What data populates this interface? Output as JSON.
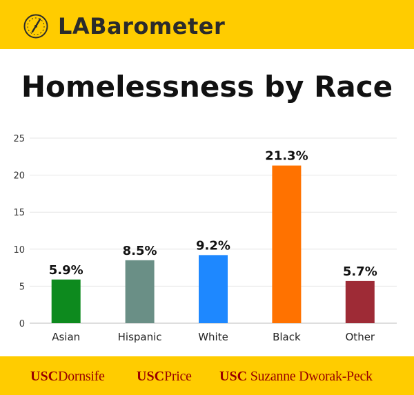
{
  "header": {
    "brand": "LABarometer",
    "icon": "barometer-gauge-icon"
  },
  "colors": {
    "brand_yellow": "#FFCC00",
    "usc_cardinal": "#990000"
  },
  "chart_data": {
    "type": "bar",
    "title": "Homelessness by Race",
    "categories": [
      "Asian",
      "Hispanic",
      "White",
      "Black",
      "Other"
    ],
    "values": [
      5.9,
      8.5,
      9.2,
      21.3,
      5.7
    ],
    "data_labels": [
      "5.9%",
      "8.5%",
      "9.2%",
      "21.3%",
      "5.7%"
    ],
    "colors": [
      "#0D8A1E",
      "#6A8F86",
      "#1E88FF",
      "#FF7200",
      "#9E2B36"
    ],
    "ylim": [
      0,
      25
    ],
    "yticks": [
      0,
      5,
      10,
      15,
      20,
      25
    ],
    "xlabel": "",
    "ylabel": "",
    "grid": true,
    "legend": "none"
  },
  "footer": {
    "orgs": [
      {
        "usc": "USC",
        "name": "Dornsife"
      },
      {
        "usc": "USC",
        "name": "Price"
      },
      {
        "usc": "USC",
        "name": "Suzanne Dworak-Peck"
      }
    ]
  }
}
